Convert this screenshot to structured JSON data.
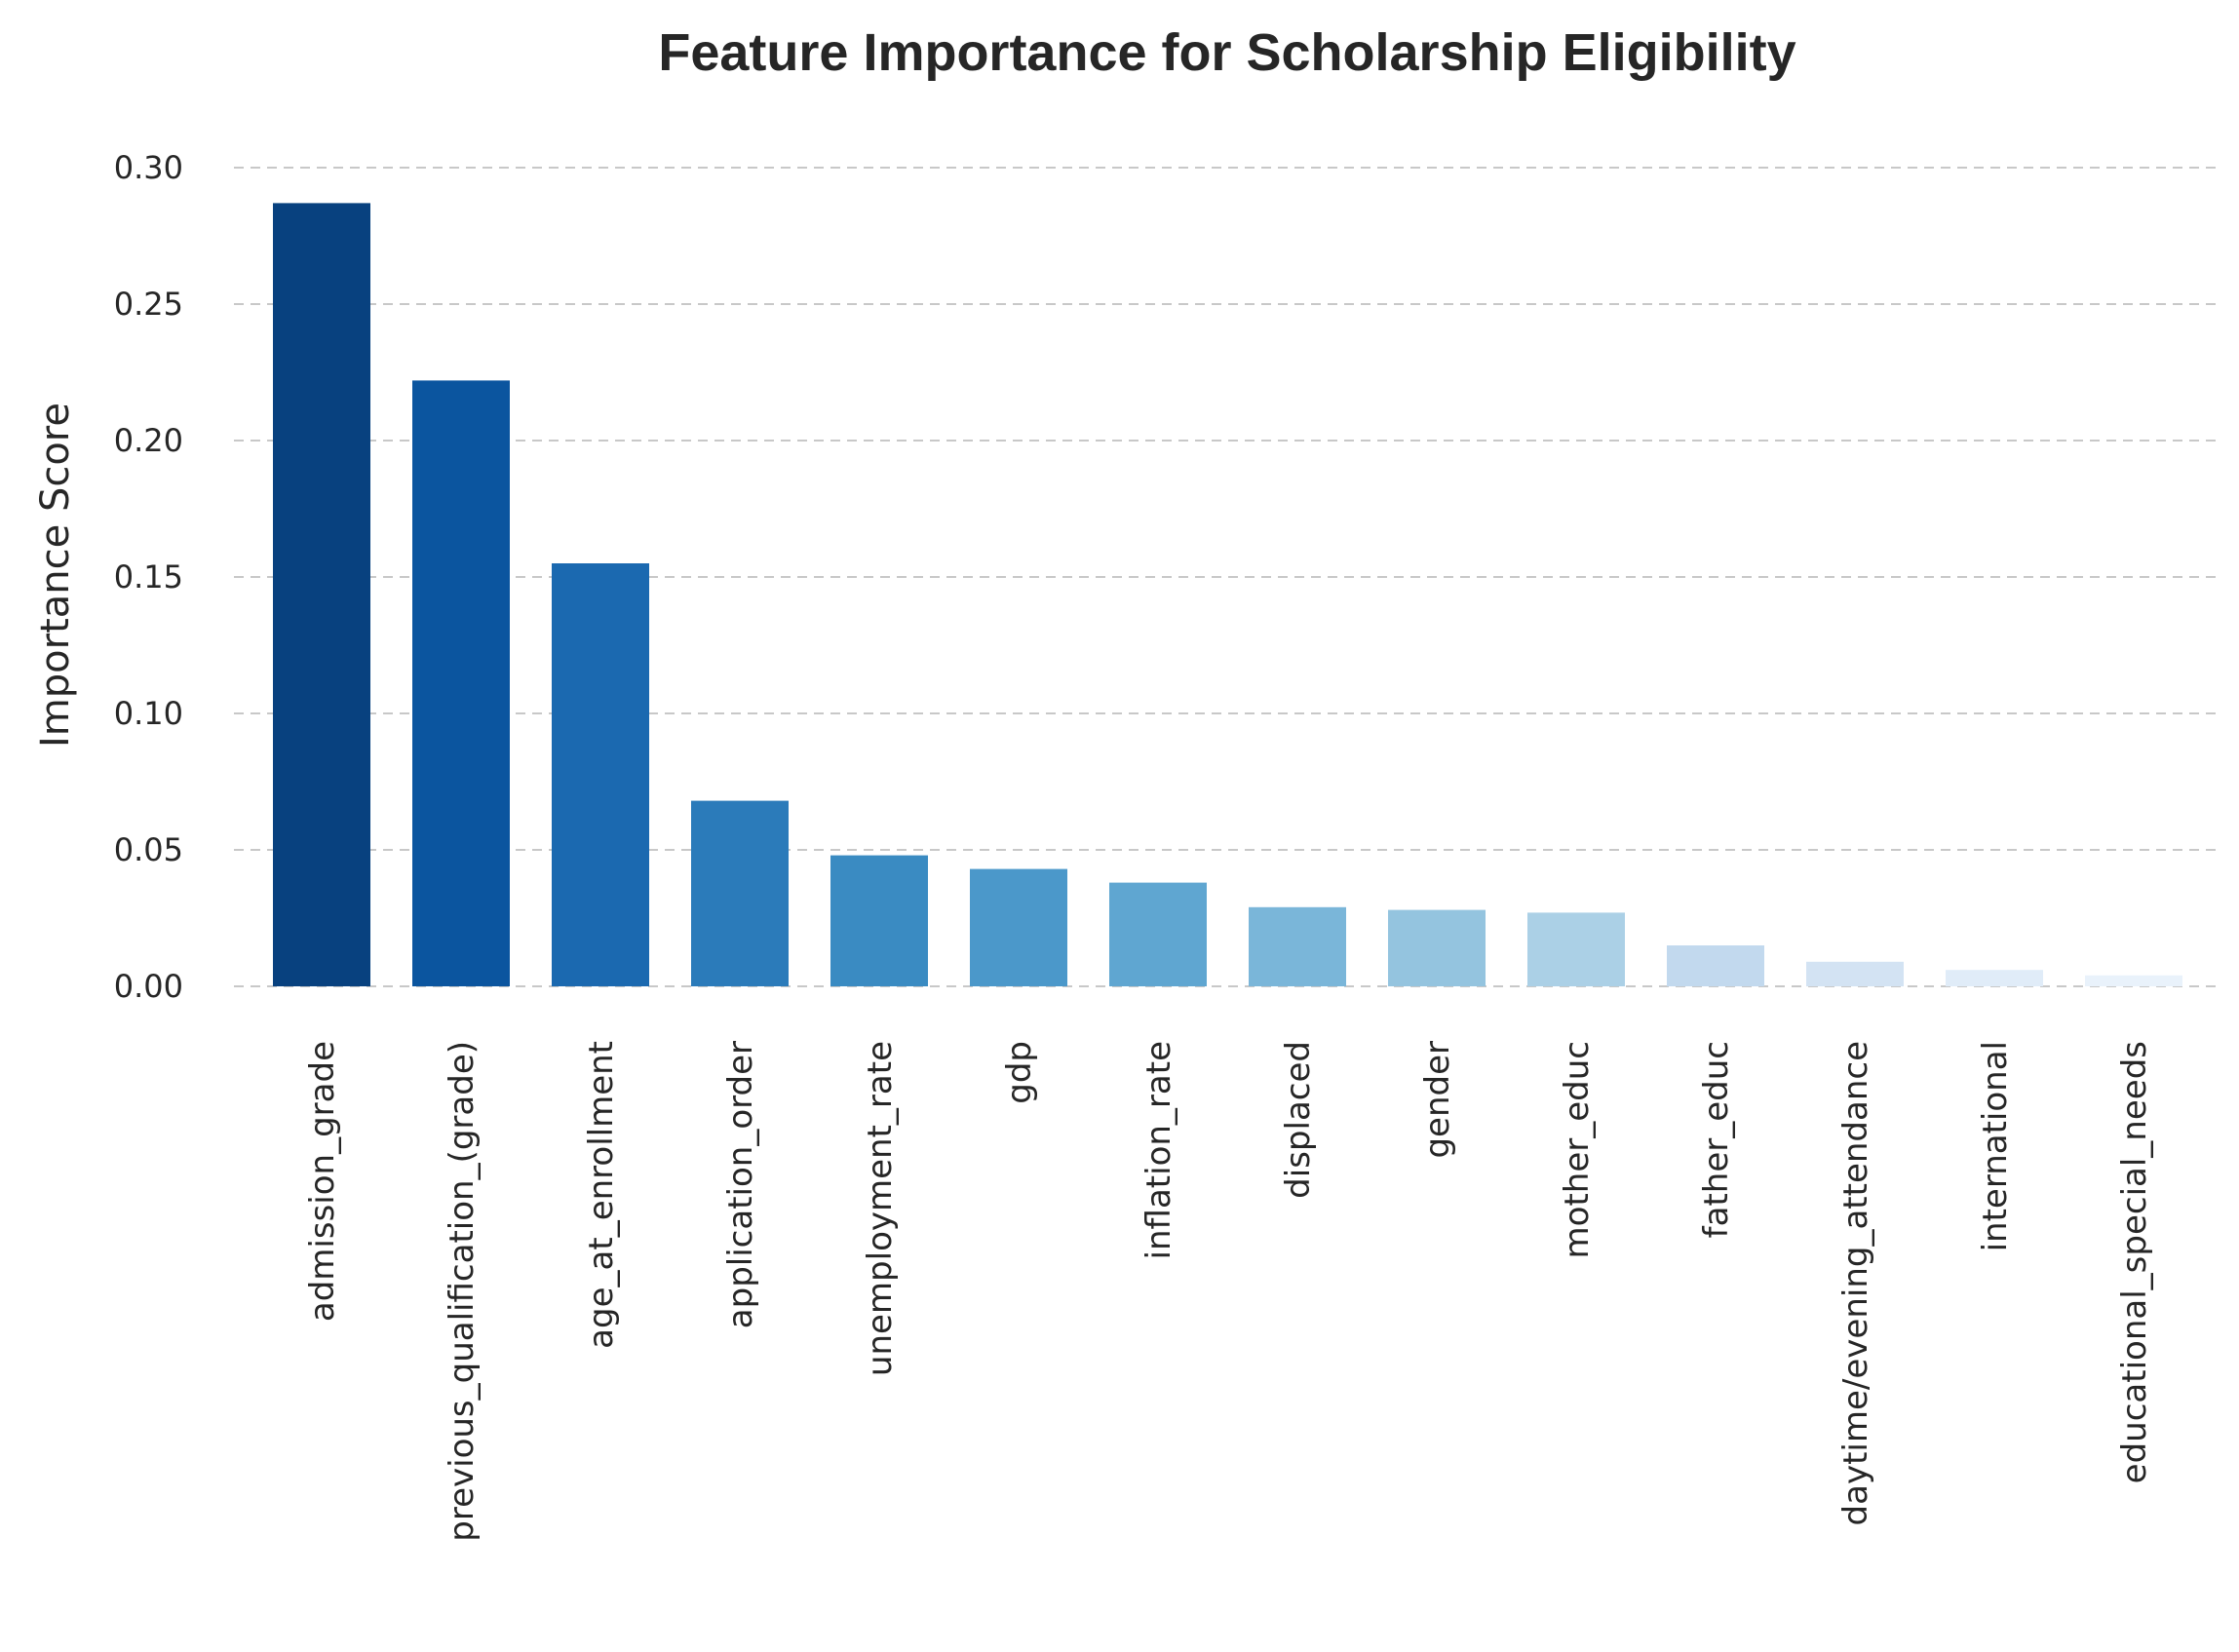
{
  "chart_data": {
    "type": "bar",
    "title": "Feature Importance for Scholarship Eligibility",
    "xlabel": "",
    "ylabel": "Importance Score",
    "ylim": [
      0,
      0.3
    ],
    "yticks": [
      "0.00",
      "0.05",
      "0.10",
      "0.15",
      "0.20",
      "0.25",
      "0.30"
    ],
    "grid": true,
    "categories": [
      "admission_grade",
      "previous_qualification_(grade)",
      "age_at_enrollment",
      "application_order",
      "unemployment_rate",
      "gdp",
      "inflation_rate",
      "displaced",
      "gender",
      "mother_educ",
      "father_educ",
      "daytime/evening_attendance",
      "international",
      "educational_special_needs"
    ],
    "values": [
      0.287,
      0.222,
      0.155,
      0.068,
      0.048,
      0.043,
      0.038,
      0.029,
      0.028,
      0.027,
      0.015,
      0.009,
      0.006,
      0.004
    ],
    "colors": [
      "#08417f",
      "#0b559f",
      "#1b69b0",
      "#2b7bba",
      "#3a8bc2",
      "#4b98ca",
      "#5fa6d1",
      "#7ab6d9",
      "#94c4df",
      "#abd0e6",
      "#c2d9ee",
      "#d3e3f3",
      "#e0ecf8",
      "#e9f2fb"
    ]
  }
}
